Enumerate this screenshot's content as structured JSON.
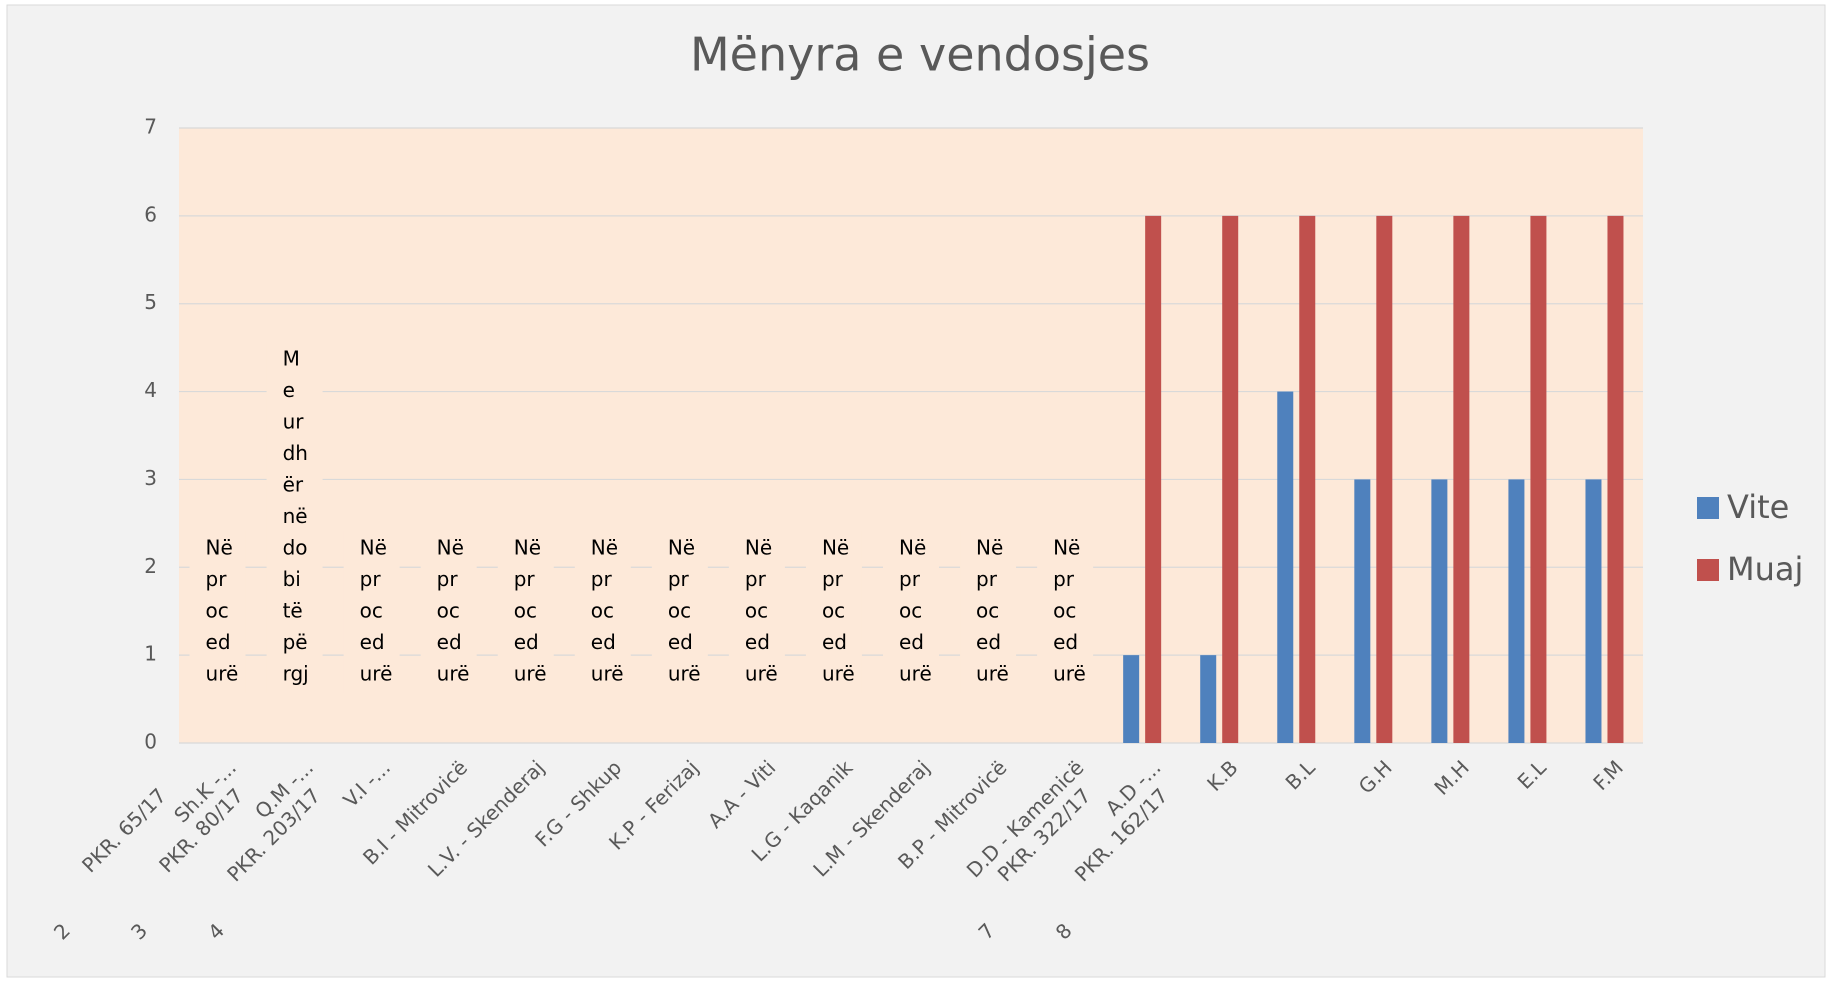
{
  "chart_data": {
    "type": "bar",
    "title": "Mënyra e vendosjes",
    "categories": [
      "Sh.K -...",
      "Q.M -...",
      "V.I -...",
      "B.I - Mitrovicë",
      "L.V. - Skenderaj",
      "F.G - Shkup",
      "K.P - Ferizaj",
      "A.A - Viti",
      "L.G - Kaqanik",
      "L.M - Skenderaj",
      "B.P - Mitrovicë",
      "D.D - Kamenicë",
      "A.D -...",
      "K.B",
      "B.L",
      "G.H",
      "M.H",
      "E.L",
      "F.M"
    ],
    "outer_labels": [
      "PKR. 65/17",
      "PKR. 80/17",
      "PKR. 203/17",
      null,
      null,
      null,
      null,
      null,
      null,
      null,
      null,
      null,
      "PKR. 322/17",
      "PKR. 162/17",
      null,
      null,
      null,
      null,
      null
    ],
    "outer_numbers": [
      "2",
      "3",
      "4",
      null,
      null,
      null,
      null,
      null,
      null,
      null,
      null,
      null,
      "7",
      "8",
      null,
      null,
      null,
      null,
      null
    ],
    "category_notes": [
      [
        "Në",
        "pr",
        "oc",
        "ed",
        "urë"
      ],
      [
        "M",
        "e",
        "ur",
        "dh",
        "ër",
        "në",
        "do",
        "bi",
        "të",
        "pë",
        "rgj"
      ],
      [
        "Në",
        "pr",
        "oc",
        "ed",
        "urë"
      ],
      [
        "Në",
        "pr",
        "oc",
        "ed",
        "urë"
      ],
      [
        "Në",
        "pr",
        "oc",
        "ed",
        "urë"
      ],
      [
        "Në",
        "pr",
        "oc",
        "ed",
        "urë"
      ],
      [
        "Në",
        "pr",
        "oc",
        "ed",
        "urë"
      ],
      [
        "Në",
        "pr",
        "oc",
        "ed",
        "urë"
      ],
      [
        "Në",
        "pr",
        "oc",
        "ed",
        "urë"
      ],
      [
        "Në",
        "pr",
        "oc",
        "ed",
        "urë"
      ],
      [
        "Në",
        "pr",
        "oc",
        "ed",
        "urë"
      ],
      [
        "Në",
        "pr",
        "oc",
        "ed",
        "urë"
      ],
      null,
      null,
      null,
      null,
      null,
      null,
      null
    ],
    "series": [
      {
        "name": "Vite",
        "color": "#4f81bd",
        "values": [
          null,
          null,
          null,
          null,
          null,
          null,
          null,
          null,
          null,
          null,
          null,
          null,
          1,
          1,
          4,
          3,
          3,
          3,
          3
        ]
      },
      {
        "name": "Muaj",
        "color": "#c0504d",
        "values": [
          null,
          null,
          null,
          null,
          null,
          null,
          null,
          null,
          null,
          null,
          null,
          null,
          6,
          6,
          6,
          6,
          6,
          6,
          6
        ]
      }
    ],
    "ylim": [
      0,
      7
    ],
    "yticks": [
      0,
      1,
      2,
      3,
      4,
      5,
      6,
      7
    ],
    "grid": true,
    "legend": "right",
    "plot_color": "#fde9d9"
  }
}
